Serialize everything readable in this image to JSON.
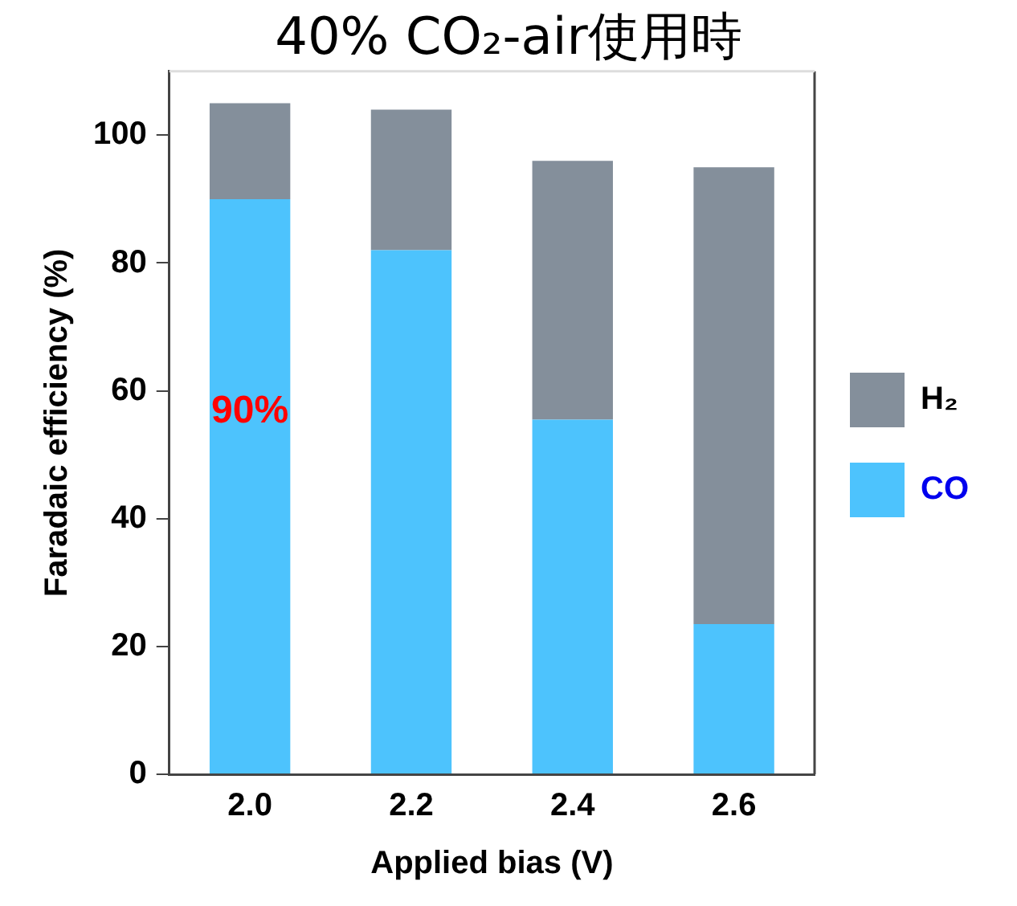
{
  "chart_data": {
    "type": "bar",
    "title": "40% CO₂-air使用時",
    "xlabel": "Applied bias (V)",
    "ylabel": "Faradaic efficiency (%)",
    "categories": [
      "2.0",
      "2.2",
      "2.4",
      "2.6"
    ],
    "series": [
      {
        "name": "CO",
        "color": "#4dc3fd",
        "values": [
          90,
          82,
          55.5,
          23.5
        ]
      },
      {
        "name": "H₂",
        "color": "#848f9b",
        "values": [
          15,
          22,
          40.5,
          71.5
        ]
      }
    ],
    "stacked": true,
    "ylim": [
      0,
      110
    ],
    "yticks": [
      0,
      20,
      40,
      60,
      80,
      100
    ],
    "grid": false,
    "legend": "right",
    "annotations": [
      "90%"
    ]
  }
}
